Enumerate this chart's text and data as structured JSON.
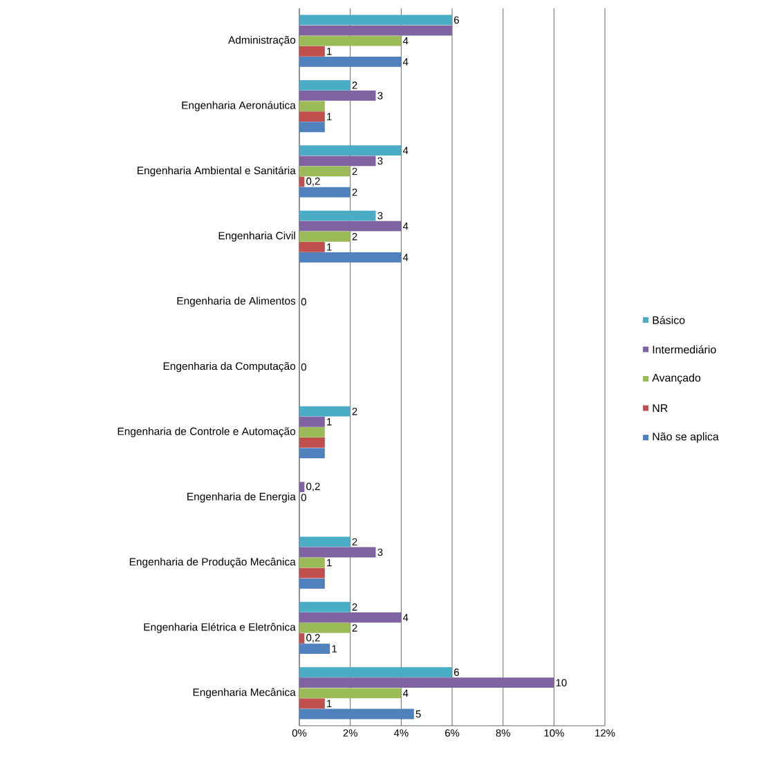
{
  "chart_data": {
    "type": "bar",
    "orientation": "horizontal",
    "categories": [
      "Administração",
      "Engenharia Aeronáutica",
      "Engenharia Ambiental e Sanitária",
      "Engenharia Civil",
      "Engenharia de Alimentos",
      "Engenharia da Computação",
      "Engenharia de Controle e Automação",
      "Engenharia de Energia",
      "Engenharia de Produção Mecânica",
      "Engenharia Elétrica e Eletrônica",
      "Engenharia Mecânica"
    ],
    "series": [
      {
        "name": "Básico",
        "color": "#4bacc6",
        "values": [
          6,
          2,
          4,
          3,
          0,
          0,
          2,
          0,
          2,
          2,
          6
        ],
        "value_labels": [
          "6",
          "2",
          "4",
          "3",
          null,
          null,
          "2",
          null,
          "2",
          "2",
          "6"
        ]
      },
      {
        "name": "Intermediário",
        "color": "#8064a2",
        "values": [
          6,
          3,
          3,
          4,
          0,
          0,
          1,
          0.2,
          3,
          4,
          10
        ],
        "value_labels": [
          null,
          "3",
          "3",
          "4",
          null,
          null,
          "1",
          "0,2",
          "3",
          "4",
          "10"
        ]
      },
      {
        "name": "Avançado",
        "color": "#9bbb59",
        "values": [
          4,
          1,
          2,
          2,
          0,
          0,
          1,
          0,
          1,
          2,
          4
        ],
        "value_labels": [
          "4",
          null,
          "2",
          "2",
          "0",
          "0",
          null,
          "0",
          "1",
          "2",
          "4"
        ]
      },
      {
        "name": "NR",
        "color": "#c0504d",
        "values": [
          1,
          1,
          0.2,
          1,
          0,
          0,
          1,
          0,
          1,
          0.2,
          1
        ],
        "value_labels": [
          "1",
          "1",
          "0,2",
          "1",
          null,
          null,
          null,
          null,
          null,
          "0,2",
          "1"
        ]
      },
      {
        "name": "Não se aplica",
        "color": "#4f81bd",
        "values": [
          4,
          1,
          2,
          4,
          0,
          0,
          1,
          0,
          1,
          1.2,
          4.5
        ],
        "value_labels": [
          "4",
          null,
          "2",
          "4",
          null,
          null,
          null,
          null,
          null,
          "1",
          "5"
        ]
      }
    ],
    "xlim": [
      0,
      12
    ],
    "xticks": [
      {
        "value": 0,
        "label": "0%"
      },
      {
        "value": 2,
        "label": "2%"
      },
      {
        "value": 4,
        "label": "4%"
      },
      {
        "value": 6,
        "label": "6%"
      },
      {
        "value": 8,
        "label": "8%"
      },
      {
        "value": 10,
        "label": "10%"
      },
      {
        "value": 12,
        "label": "12%"
      }
    ],
    "grid": "x",
    "legend": "right"
  }
}
